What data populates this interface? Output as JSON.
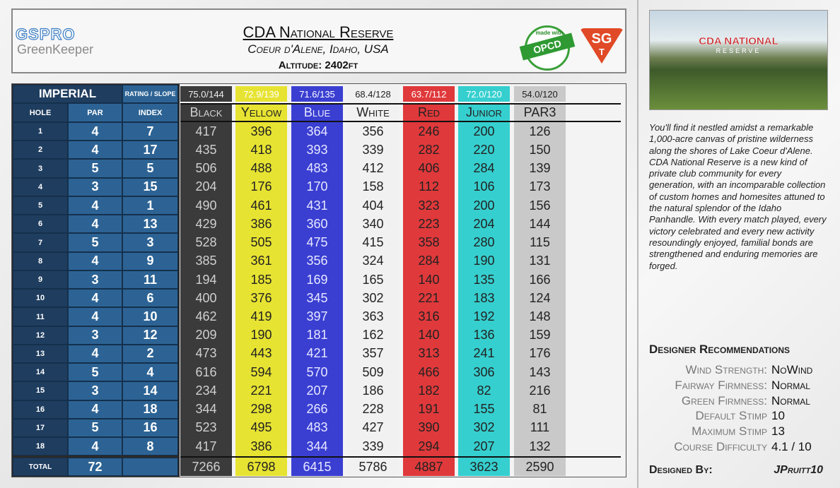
{
  "header": {
    "logo_top": "GSPRO",
    "logo_bottom": "GreenKeeper",
    "title": "CDA National Reserve",
    "subtitle": "Coeur d'Alene, Idaho, USA",
    "altitude": "Altitude: 2402ft",
    "badge_top": "made with",
    "badge_main": "OPCD",
    "sg_logo": "SG",
    "sg_sub": "T"
  },
  "image": {
    "label_top": "CDA NATIONAL",
    "label_bottom": "RESERVE"
  },
  "table": {
    "units": "IMPERIAL",
    "rating_label": "RATING / SLOPE",
    "ratings": [
      "75.0/144",
      "72.9/139",
      "71.6/135",
      "68.4/128",
      "63.7/112",
      "72.0/120",
      "54.0/120"
    ],
    "columns": [
      "HOLE",
      "PAR",
      "INDEX"
    ],
    "tees": [
      "Black",
      "Yellow",
      "Blue",
      "White",
      "Red",
      "Junior",
      "PAR3"
    ],
    "rows": [
      [
        1,
        4,
        7,
        417,
        396,
        364,
        356,
        246,
        200,
        126
      ],
      [
        2,
        4,
        17,
        435,
        418,
        393,
        339,
        282,
        220,
        150
      ],
      [
        3,
        5,
        5,
        506,
        488,
        483,
        412,
        406,
        284,
        139
      ],
      [
        4,
        3,
        15,
        204,
        176,
        170,
        158,
        112,
        106,
        173
      ],
      [
        5,
        4,
        1,
        490,
        461,
        431,
        404,
        323,
        200,
        156
      ],
      [
        6,
        4,
        13,
        429,
        386,
        360,
        340,
        223,
        204,
        144
      ],
      [
        7,
        5,
        3,
        528,
        505,
        475,
        415,
        358,
        280,
        115
      ],
      [
        8,
        4,
        9,
        385,
        361,
        356,
        324,
        284,
        190,
        131
      ],
      [
        9,
        3,
        11,
        194,
        185,
        169,
        165,
        140,
        135,
        166
      ],
      [
        10,
        4,
        6,
        400,
        376,
        345,
        302,
        221,
        183,
        124
      ],
      [
        11,
        4,
        10,
        462,
        419,
        397,
        363,
        316,
        192,
        148
      ],
      [
        12,
        3,
        12,
        209,
        190,
        181,
        162,
        140,
        136,
        159
      ],
      [
        13,
        4,
        2,
        473,
        443,
        421,
        357,
        313,
        241,
        176
      ],
      [
        14,
        5,
        4,
        616,
        594,
        570,
        509,
        466,
        306,
        143
      ],
      [
        15,
        3,
        14,
        234,
        221,
        207,
        186,
        182,
        82,
        216
      ],
      [
        16,
        4,
        18,
        344,
        298,
        266,
        228,
        191,
        155,
        81
      ],
      [
        17,
        5,
        16,
        523,
        495,
        483,
        427,
        390,
        302,
        111
      ],
      [
        18,
        4,
        8,
        417,
        386,
        344,
        339,
        294,
        207,
        132
      ]
    ],
    "total": [
      "TOTAL",
      72,
      7266,
      6798,
      6415,
      5786,
      4887,
      3623,
      2590
    ]
  },
  "description": "You'll find it nestled amidst a remarkable 1,000-acre canvas of pristine wilderness along the shores of Lake Coeur d'Alene. CDA National Reserve is a new kind of private club community for every generation, with an incomparable collection of custom homes and homesites attuned to the natural splendor of the Idaho Panhandle. With every match played, every victory celebrated and every new activity resoundingly enjoyed, familial bonds are strengthened and enduring memories are forged.",
  "recommendations": {
    "title": "Designer Recommendations",
    "items": [
      {
        "label": "Wind Strength:",
        "value": "NoWind"
      },
      {
        "label": "Fairway Firmness:",
        "value": "Normal"
      },
      {
        "label": "Green Firmness:",
        "value": "Normal"
      },
      {
        "label": "Default Stimp",
        "value": "10"
      },
      {
        "label": "Maximum Stimp",
        "value": "13"
      },
      {
        "label": "Course Difficulty",
        "value": "4.1 / 10"
      }
    ]
  },
  "designed_by": {
    "label": "Designed By:",
    "value": "JPruitt10"
  }
}
